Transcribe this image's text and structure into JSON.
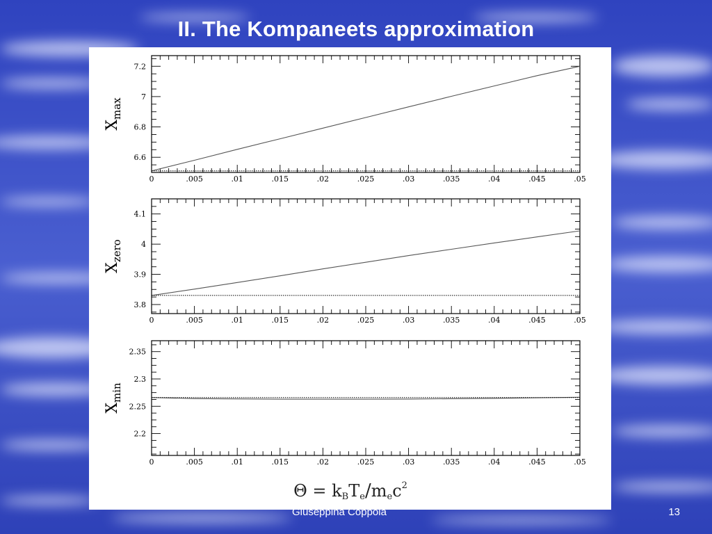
{
  "slide": {
    "title": "II. The Kompaneets approximation",
    "author": "Giuseppina Coppola",
    "page_number": "13",
    "background_color": "#3c50c6",
    "cloud_color": "#e9ecff"
  },
  "chart_data": [
    {
      "type": "line",
      "ylabel_main": "X",
      "ylabel_sub": "max",
      "xlim": [
        0,
        0.05
      ],
      "ylim": [
        6.5,
        7.27
      ],
      "x_ticks": [
        0,
        0.005,
        0.01,
        0.015,
        0.02,
        0.025,
        0.03,
        0.035,
        0.04,
        0.045,
        0.05
      ],
      "x_tick_labels": [
        "0",
        ".005",
        ".01",
        ".015",
        ".02",
        ".025",
        ".03",
        ".035",
        ".04",
        ".045",
        ".05"
      ],
      "y_ticks": [
        6.6,
        6.8,
        7.0,
        7.2
      ],
      "y_tick_labels": [
        "6.6",
        "6.8",
        "7",
        "7.2"
      ],
      "series": [
        {
          "style": "solid",
          "x": [
            0,
            0.005,
            0.01,
            0.015,
            0.02,
            0.025,
            0.03,
            0.035,
            0.04,
            0.045,
            0.05
          ],
          "y": [
            6.51,
            6.58,
            6.652,
            6.722,
            6.792,
            6.862,
            6.932,
            7.002,
            7.07,
            7.138,
            7.2
          ]
        },
        {
          "style": "dotted",
          "x": [
            0,
            0.05
          ],
          "y": [
            6.51,
            6.51
          ]
        }
      ]
    },
    {
      "type": "line",
      "ylabel_main": "X",
      "ylabel_sub": "zero",
      "xlim": [
        0,
        0.05
      ],
      "ylim": [
        3.77,
        4.15
      ],
      "x_ticks": [
        0,
        0.005,
        0.01,
        0.015,
        0.02,
        0.025,
        0.03,
        0.035,
        0.04,
        0.045,
        0.05
      ],
      "x_tick_labels": [
        "0",
        ".005",
        ".01",
        ".015",
        ".02",
        ".025",
        ".03",
        ".035",
        ".04",
        ".045",
        ".05"
      ],
      "y_ticks": [
        3.8,
        3.9,
        4.0,
        4.1
      ],
      "y_tick_labels": [
        "3.8",
        "3.9",
        "4",
        "4.1"
      ],
      "series": [
        {
          "style": "solid",
          "x": [
            0,
            0.005,
            0.01,
            0.015,
            0.02,
            0.025,
            0.03,
            0.035,
            0.04,
            0.045,
            0.05
          ],
          "y": [
            3.83,
            3.851,
            3.873,
            3.895,
            3.918,
            3.94,
            3.962,
            3.983,
            4.004,
            4.024,
            4.044
          ]
        },
        {
          "style": "dotted",
          "x": [
            0,
            0.05
          ],
          "y": [
            3.83,
            3.83
          ]
        }
      ]
    },
    {
      "type": "line",
      "ylabel_main": "X",
      "ylabel_sub": "min",
      "xlim": [
        0,
        0.05
      ],
      "ylim": [
        2.16,
        2.37
      ],
      "x_ticks": [
        0,
        0.005,
        0.01,
        0.015,
        0.02,
        0.025,
        0.03,
        0.035,
        0.04,
        0.045,
        0.05
      ],
      "x_tick_labels": [
        "0",
        ".005",
        ".01",
        ".015",
        ".02",
        ".025",
        ".03",
        ".035",
        ".04",
        ".045",
        ".05"
      ],
      "y_ticks": [
        2.2,
        2.25,
        2.3,
        2.35
      ],
      "y_tick_labels": [
        "2.2",
        "2.25",
        "2.3",
        "2.35"
      ],
      "series": [
        {
          "style": "solid",
          "x": [
            0,
            0.005,
            0.01,
            0.015,
            0.02,
            0.025,
            0.03,
            0.035,
            0.04,
            0.045,
            0.05
          ],
          "y": [
            2.266,
            2.264,
            2.2635,
            2.263,
            2.263,
            2.263,
            2.2632,
            2.2638,
            2.2645,
            2.2655,
            2.2665
          ]
        },
        {
          "style": "dotted",
          "x": [
            0,
            0.05
          ],
          "y": [
            2.266,
            2.266
          ]
        }
      ]
    }
  ],
  "xlabel": {
    "theta": "Θ",
    "equals": "=",
    "k": "k",
    "k_sub": "B",
    "T": "T",
    "T_sub": "e",
    "slash": "/",
    "m": "m",
    "m_sub": "e",
    "c": "c",
    "c_sup": "2"
  }
}
